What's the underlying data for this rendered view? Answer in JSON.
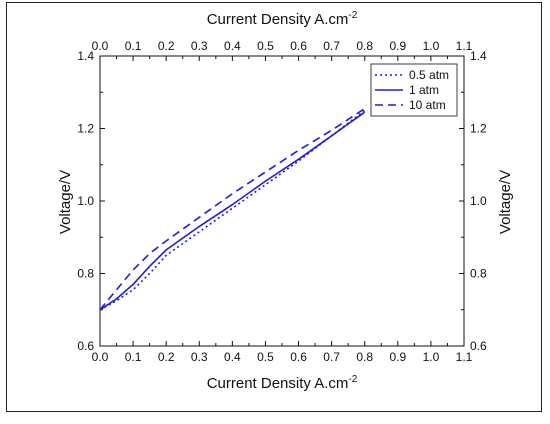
{
  "chart_data": {
    "type": "line",
    "xlabel_top": "Current Density A.cm",
    "xlabel_bottom": "Current Density A.cm",
    "xlabel_superscript": "-2",
    "ylabel_left": "Voltage/V",
    "ylabel_right": "Voltage/V",
    "xlim": [
      0.0,
      1.1
    ],
    "ylim": [
      0.6,
      1.4
    ],
    "x_ticks": [
      "0.0",
      "0.1",
      "0.2",
      "0.3",
      "0.4",
      "0.5",
      "0.6",
      "0.7",
      "0.8",
      "0.9",
      "1.0",
      "1.1"
    ],
    "y_ticks": [
      "0.6",
      "0.8",
      "1.0",
      "1.2",
      "1.4"
    ],
    "grid": false,
    "legend_position": "top-right",
    "color": "#1f1fd0",
    "series": [
      {
        "name": "0.5 atm",
        "style": "dotted",
        "x": [
          0.0,
          0.05,
          0.1,
          0.15,
          0.2,
          0.3,
          0.4,
          0.5,
          0.6,
          0.7,
          0.8
        ],
        "y": [
          0.7,
          0.725,
          0.755,
          0.8,
          0.85,
          0.915,
          0.98,
          1.045,
          1.11,
          1.18,
          1.25
        ]
      },
      {
        "name": "1 atm",
        "style": "solid",
        "x": [
          0.0,
          0.05,
          0.1,
          0.15,
          0.2,
          0.3,
          0.4,
          0.5,
          0.6,
          0.7,
          0.8
        ],
        "y": [
          0.7,
          0.73,
          0.77,
          0.82,
          0.865,
          0.93,
          0.99,
          1.055,
          1.115,
          1.18,
          1.245
        ]
      },
      {
        "name": "10 atm",
        "style": "dashed",
        "x": [
          0.0,
          0.05,
          0.1,
          0.15,
          0.2,
          0.3,
          0.4,
          0.5,
          0.6,
          0.7,
          0.8
        ],
        "y": [
          0.7,
          0.755,
          0.81,
          0.855,
          0.89,
          0.955,
          1.02,
          1.08,
          1.14,
          1.195,
          1.255
        ]
      }
    ]
  }
}
